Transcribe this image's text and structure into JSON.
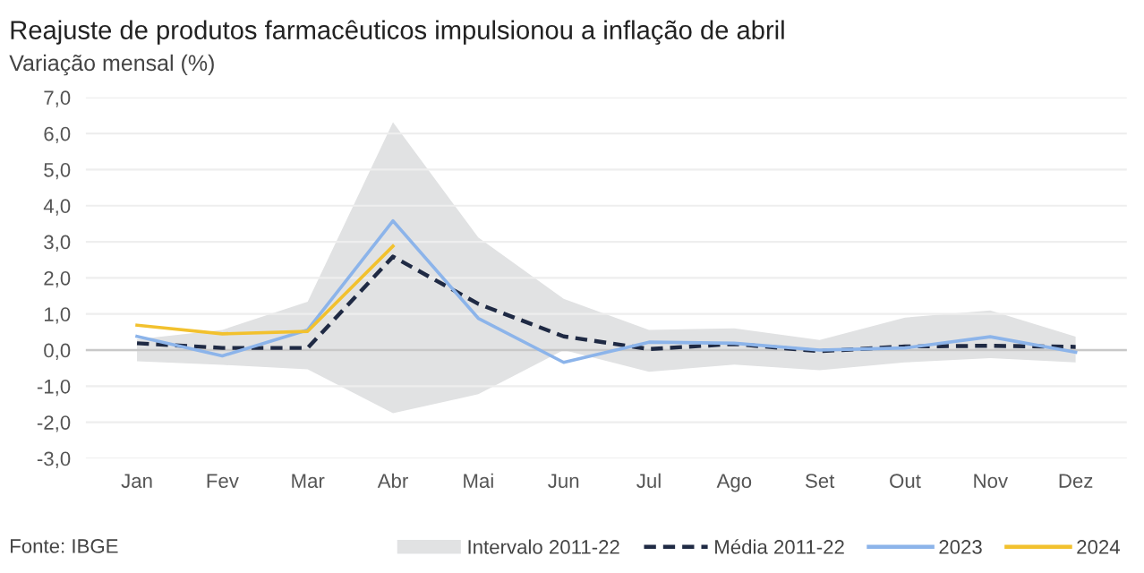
{
  "chart_data": {
    "type": "line",
    "title": "Reajuste de produtos farmacêuticos impulsionou a inflação de abril",
    "subtitle": "Variação mensal (%)",
    "categories": [
      "Jan",
      "Fev",
      "Mar",
      "Abr",
      "Mai",
      "Jun",
      "Jul",
      "Ago",
      "Set",
      "Out",
      "Nov",
      "Dez"
    ],
    "series": [
      {
        "name": "Intervalo 2011-22",
        "type": "area",
        "color": "#e1e2e3",
        "values": [
          null,
          null,
          null,
          null,
          null,
          null,
          null,
          null,
          null,
          null,
          null,
          null
        ],
        "lower": [
          -0.31,
          -0.41,
          -0.53,
          -1.75,
          -1.22,
          0.0,
          -0.6,
          -0.4,
          -0.56,
          -0.34,
          -0.22,
          -0.34
        ],
        "upper": [
          0.3,
          0.56,
          1.34,
          6.31,
          3.12,
          1.42,
          0.56,
          0.6,
          0.28,
          0.9,
          1.1,
          0.37
        ]
      },
      {
        "name": "Média 2011-22",
        "type": "line",
        "line_style": "dashed",
        "color": "#1f2a44",
        "values": [
          0.19,
          0.06,
          0.06,
          2.59,
          1.28,
          0.38,
          0.03,
          0.17,
          -0.03,
          0.1,
          0.12,
          0.09
        ]
      },
      {
        "name": "2023",
        "type": "line",
        "color": "#8cb4ea",
        "values": [
          0.38,
          -0.16,
          0.56,
          3.58,
          0.88,
          -0.34,
          0.22,
          0.19,
          0.0,
          0.06,
          0.37,
          -0.06
        ]
      },
      {
        "name": "2024",
        "type": "line",
        "color": "#f2c12e",
        "values": [
          0.69,
          0.45,
          0.52,
          2.88,
          null,
          null,
          null,
          null,
          null,
          null,
          null,
          null
        ]
      }
    ],
    "ylim": [
      -3.0,
      7.0
    ],
    "yticks": [
      {
        "value": -3,
        "label": "-3,0"
      },
      {
        "value": -2,
        "label": "-2,0"
      },
      {
        "value": -1,
        "label": "-1,0"
      },
      {
        "value": 0,
        "label": "0,0"
      },
      {
        "value": 1,
        "label": "1,0"
      },
      {
        "value": 2,
        "label": "2,0"
      },
      {
        "value": 3,
        "label": "3,0"
      },
      {
        "value": 4,
        "label": "4,0"
      },
      {
        "value": 5,
        "label": "5,0"
      },
      {
        "value": 6,
        "label": "6,0"
      },
      {
        "value": 7,
        "label": "7,0"
      }
    ],
    "ref_lines": [
      {
        "axis": "y",
        "value": 0,
        "color": "#c8c8c8"
      }
    ],
    "grid": "y",
    "legend": "bottom right",
    "marker": "none",
    "annotations": [
      "Fonte: IBGE"
    ]
  }
}
